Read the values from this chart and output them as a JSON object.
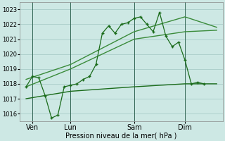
{
  "bg_color": "#cde8e4",
  "grid_color": "#aed0cc",
  "line_color_main": "#1a6b1a",
  "line_color_light": "#3a8b3a",
  "xlabel": "Pression niveau de la mer( hPa )",
  "ylim": [
    1015.5,
    1023.5
  ],
  "yticks": [
    1016,
    1017,
    1018,
    1019,
    1020,
    1021,
    1022,
    1023
  ],
  "xtick_labels": [
    "Ven",
    "Lun",
    "Sam",
    "Dim"
  ],
  "xtick_pos": [
    1,
    4,
    9,
    13
  ],
  "vline_pos": [
    1,
    4,
    9,
    13
  ],
  "xlim": [
    0,
    16
  ],
  "series1_x": [
    0.5,
    1.0,
    1.5,
    2.0,
    2.5,
    3.0,
    3.5,
    4.0,
    4.5,
    5.0,
    5.5,
    6.0,
    6.5,
    7.0,
    7.5,
    8.0,
    8.5,
    9.0,
    9.5,
    10.0,
    10.5,
    11.0,
    11.5,
    12.0,
    12.5,
    13.0,
    13.5,
    14.0,
    14.5
  ],
  "series1_y": [
    1017.8,
    1018.5,
    1018.4,
    1017.2,
    1015.7,
    1015.9,
    1017.8,
    1017.9,
    1018.0,
    1018.3,
    1018.5,
    1019.3,
    1021.4,
    1021.9,
    1021.4,
    1022.0,
    1022.1,
    1022.4,
    1022.5,
    1022.0,
    1021.5,
    1022.8,
    1021.2,
    1020.5,
    1020.8,
    1019.6,
    1018.0,
    1018.1,
    1018.0
  ],
  "series2_x": [
    0.5,
    4.0,
    9.0,
    13.0,
    15.5
  ],
  "series2_y": [
    1017.0,
    1017.5,
    1017.8,
    1018.0,
    1018.0
  ],
  "series3_x": [
    0.5,
    4.0,
    9.0,
    13.0,
    15.5
  ],
  "series3_y": [
    1017.8,
    1019.0,
    1021.0,
    1021.5,
    1021.6
  ],
  "series4_x": [
    0.5,
    4.0,
    9.0,
    13.0,
    15.5
  ],
  "series4_y": [
    1018.3,
    1019.3,
    1021.5,
    1022.5,
    1021.8
  ]
}
